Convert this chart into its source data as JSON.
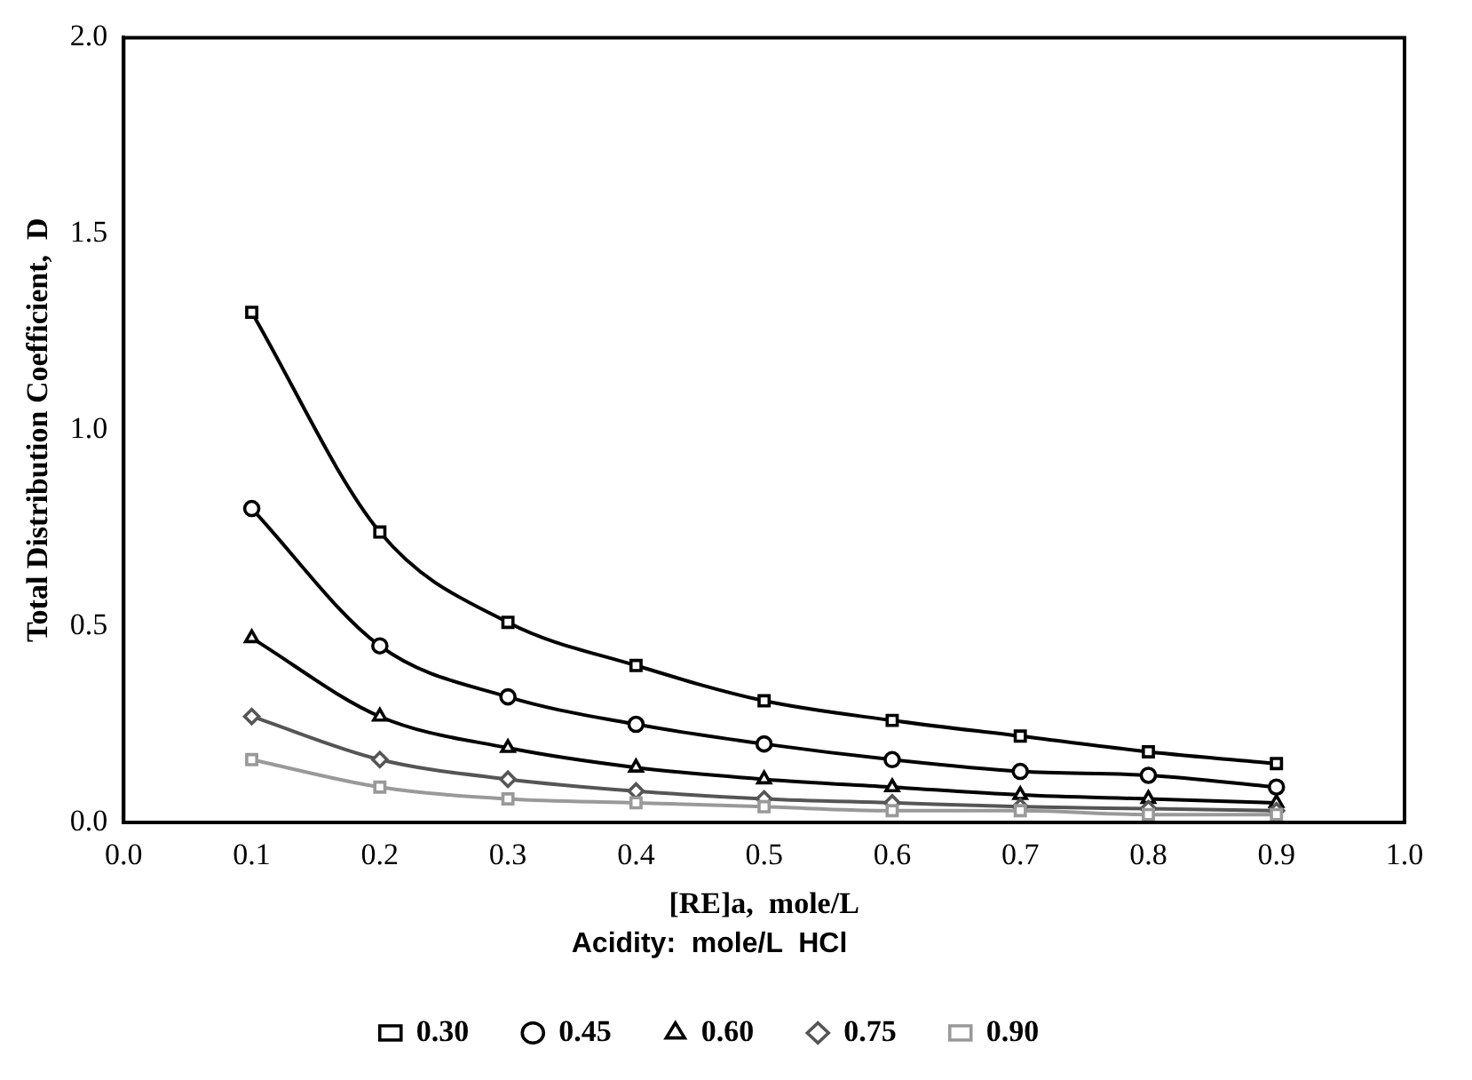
{
  "chart_data": {
    "type": "line",
    "xlabel": "[RE]a,  mole/L",
    "ylabel": "Total Distribution Coefficient,  D",
    "legend_title": "Acidity:  mole/L  HCl",
    "legend": "bottom",
    "grid": false,
    "line_style": "solid",
    "x": [
      0.1,
      0.2,
      0.3,
      0.4,
      0.5,
      0.6,
      0.7,
      0.8,
      0.9
    ],
    "xlim": [
      0,
      1
    ],
    "xticks": [
      {
        "value": 0,
        "label": "0.0"
      },
      0.1,
      0.2,
      0.3,
      0.4,
      0.5,
      0.6,
      0.7,
      0.8,
      0.9,
      {
        "value": 1,
        "label": "1.0"
      }
    ],
    "ylim": [
      0,
      2
    ],
    "yticks": [
      {
        "value": 0,
        "label": "0.0"
      },
      0.5,
      {
        "value": 1,
        "label": "1.0"
      },
      1.5,
      {
        "value": 2,
        "label": "2.0"
      }
    ],
    "series": [
      {
        "name": "0.30",
        "color": "#000000",
        "marker": "square",
        "values": [
          1.3,
          0.74,
          0.51,
          0.4,
          0.31,
          0.26,
          0.22,
          0.18,
          0.15
        ]
      },
      {
        "name": "0.45",
        "color": "#000000",
        "marker": "circle",
        "values": [
          0.8,
          0.45,
          0.32,
          0.25,
          0.2,
          0.16,
          0.13,
          0.12,
          0.09
        ]
      },
      {
        "name": "0.60",
        "color": "#000000",
        "marker": "triangle",
        "values": [
          0.47,
          0.27,
          0.19,
          0.14,
          0.11,
          0.09,
          0.07,
          0.06,
          0.05
        ]
      },
      {
        "name": "0.75",
        "color": "#555555",
        "marker": "diamond",
        "values": [
          0.27,
          0.16,
          0.11,
          0.08,
          0.06,
          0.05,
          0.04,
          0.035,
          0.03
        ]
      },
      {
        "name": "0.90",
        "color": "#999999",
        "marker": "square",
        "values": [
          0.16,
          0.09,
          0.06,
          0.05,
          0.04,
          0.03,
          0.03,
          0.02,
          0.02
        ]
      }
    ]
  }
}
